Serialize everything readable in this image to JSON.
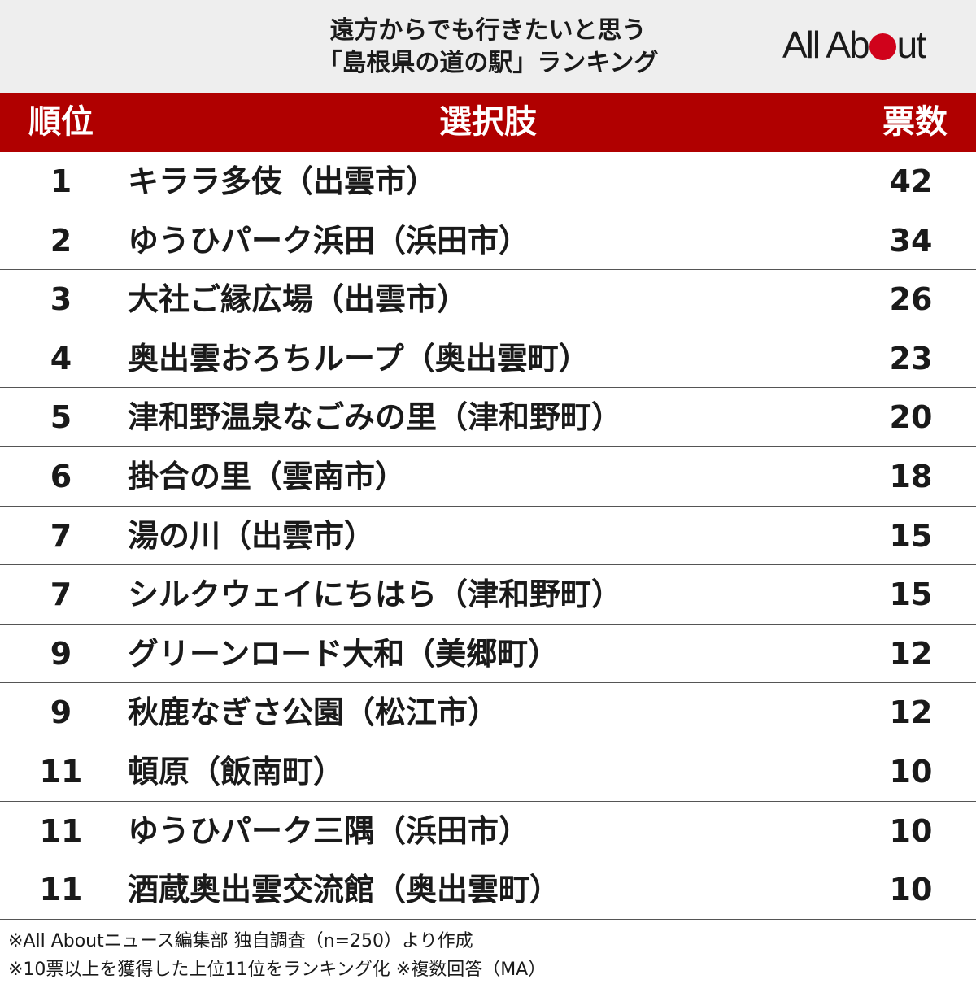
{
  "header": {
    "title_line1": "遠方からでも行きたいと思う",
    "title_line2": "「島根県の道の駅」ランキング",
    "logo_text_left": "All Ab",
    "logo_text_right": "ut",
    "logo_dot_color": "#d0021b"
  },
  "table": {
    "columns": {
      "rank": "順位",
      "choice": "選択肢",
      "votes": "票数"
    },
    "header_color": "#b00000",
    "rows": [
      {
        "rank": "1",
        "choice": "キララ多伎（出雲市）",
        "votes": "42"
      },
      {
        "rank": "2",
        "choice": "ゆうひパーク浜田（浜田市）",
        "votes": "34"
      },
      {
        "rank": "3",
        "choice": "大社ご縁広場（出雲市）",
        "votes": "26"
      },
      {
        "rank": "4",
        "choice": "奥出雲おろちループ（奥出雲町）",
        "votes": "23"
      },
      {
        "rank": "5",
        "choice": "津和野温泉なごみの里（津和野町）",
        "votes": "20"
      },
      {
        "rank": "6",
        "choice": "掛合の里（雲南市）",
        "votes": "18"
      },
      {
        "rank": "7",
        "choice": "湯の川（出雲市）",
        "votes": "15"
      },
      {
        "rank": "7",
        "choice": "シルクウェイにちはら（津和野町）",
        "votes": "15"
      },
      {
        "rank": "9",
        "choice": "グリーンロード大和（美郷町）",
        "votes": "12"
      },
      {
        "rank": "9",
        "choice": "秋鹿なぎさ公園（松江市）",
        "votes": "12"
      },
      {
        "rank": "11",
        "choice": "頓原（飯南町）",
        "votes": "10"
      },
      {
        "rank": "11",
        "choice": "ゆうひパーク三隅（浜田市）",
        "votes": "10"
      },
      {
        "rank": "11",
        "choice": "酒蔵奥出雲交流館（奥出雲町）",
        "votes": "10"
      }
    ]
  },
  "footnotes": {
    "line1": "※All Aboutニュース編集部 独自調査（n=250）より作成",
    "line2": "※10票以上を獲得した上位11位をランキング化 ※複数回答（MA）"
  }
}
